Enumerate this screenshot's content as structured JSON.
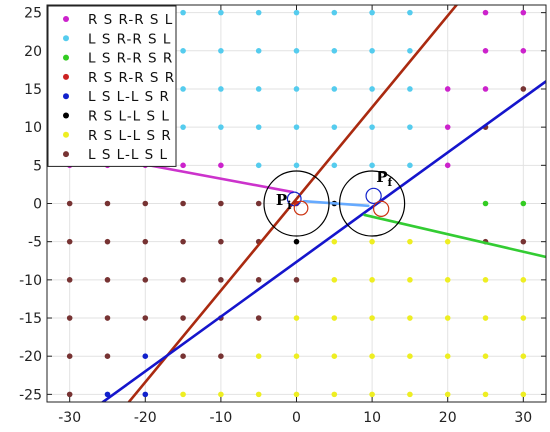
{
  "chart_data": {
    "type": "scatter",
    "title": "",
    "xlabel": "",
    "ylabel": "",
    "xlim": [
      -33,
      33
    ],
    "ylim": [
      -26,
      26
    ],
    "xticks": [
      -30,
      -20,
      -10,
      0,
      10,
      20,
      30
    ],
    "yticks": [
      -25,
      -20,
      -15,
      -10,
      -5,
      0,
      5,
      10,
      15,
      20,
      25
    ],
    "grid": true,
    "legend_position": "top-left",
    "series": [
      {
        "name": "R S R-R S L",
        "color": "#cc22cc",
        "points": [
          [
            -30,
            25
          ],
          [
            -25,
            25
          ],
          [
            -20,
            25
          ],
          [
            -30,
            20
          ],
          [
            -25,
            20
          ],
          [
            -20,
            20
          ],
          [
            -30,
            15
          ],
          [
            -25,
            15
          ],
          [
            -20,
            15
          ],
          [
            -30,
            10
          ],
          [
            -25,
            10
          ],
          [
            -20,
            10
          ],
          [
            -30,
            5
          ],
          [
            -25,
            5
          ],
          [
            -20,
            5
          ],
          [
            -15,
            5
          ],
          [
            -10,
            5
          ],
          [
            25,
            25
          ],
          [
            30,
            25
          ],
          [
            25,
            20
          ],
          [
            30,
            20
          ],
          [
            25,
            15
          ],
          [
            20,
            15
          ],
          [
            20,
            10
          ],
          [
            20,
            5
          ]
        ]
      },
      {
        "name": "L S R-R S L",
        "color": "#55ccee",
        "points": [
          [
            -15,
            25
          ],
          [
            -10,
            25
          ],
          [
            -5,
            25
          ],
          [
            0,
            25
          ],
          [
            5,
            25
          ],
          [
            10,
            25
          ],
          [
            15,
            25
          ],
          [
            -15,
            20
          ],
          [
            -10,
            20
          ],
          [
            -5,
            20
          ],
          [
            0,
            20
          ],
          [
            5,
            20
          ],
          [
            10,
            20
          ],
          [
            15,
            20
          ],
          [
            -15,
            15
          ],
          [
            -10,
            15
          ],
          [
            -5,
            15
          ],
          [
            0,
            15
          ],
          [
            5,
            15
          ],
          [
            10,
            15
          ],
          [
            15,
            15
          ],
          [
            -15,
            10
          ],
          [
            -10,
            10
          ],
          [
            -5,
            10
          ],
          [
            0,
            10
          ],
          [
            5,
            10
          ],
          [
            10,
            10
          ],
          [
            15,
            10
          ],
          [
            -5,
            5
          ],
          [
            0,
            5
          ],
          [
            5,
            5
          ],
          [
            10,
            5
          ],
          [
            15,
            5
          ]
        ]
      },
      {
        "name": "L S R-R S R",
        "color": "#33cc22",
        "points": [
          [
            25,
            0
          ],
          [
            30,
            0
          ]
        ]
      },
      {
        "name": "R S R-R S R",
        "color": "#cc2222",
        "points": [
          [
            0,
            0
          ]
        ]
      },
      {
        "name": "L S L-L S R",
        "color": "#1122cc",
        "points": [
          [
            -20,
            -20
          ],
          [
            -25,
            -25
          ],
          [
            -20,
            -25
          ]
        ]
      },
      {
        "name": "R S L-L S L",
        "color": "#000000",
        "points": [
          [
            5,
            0
          ],
          [
            0,
            -5
          ]
        ]
      },
      {
        "name": "R S L-L S R",
        "color": "#eeee22",
        "points": [
          [
            5,
            -10
          ],
          [
            10,
            -10
          ],
          [
            15,
            -10
          ],
          [
            20,
            -10
          ],
          [
            25,
            -10
          ],
          [
            30,
            -10
          ],
          [
            0,
            -15
          ],
          [
            5,
            -15
          ],
          [
            10,
            -15
          ],
          [
            15,
            -15
          ],
          [
            20,
            -15
          ],
          [
            25,
            -15
          ],
          [
            30,
            -15
          ],
          [
            -5,
            -20
          ],
          [
            0,
            -20
          ],
          [
            5,
            -20
          ],
          [
            10,
            -20
          ],
          [
            15,
            -20
          ],
          [
            20,
            -20
          ],
          [
            25,
            -20
          ],
          [
            30,
            -20
          ],
          [
            -15,
            -25
          ],
          [
            -10,
            -25
          ],
          [
            -5,
            -25
          ],
          [
            0,
            -25
          ],
          [
            5,
            -25
          ],
          [
            10,
            -25
          ],
          [
            15,
            -25
          ],
          [
            20,
            -25
          ],
          [
            25,
            -25
          ],
          [
            30,
            -25
          ],
          [
            5,
            -5
          ],
          [
            10,
            -5
          ],
          [
            15,
            -5
          ],
          [
            20,
            -5
          ]
        ]
      },
      {
        "name": "L S L-L S L",
        "color": "#773333",
        "points": [
          [
            -30,
            0
          ],
          [
            -25,
            0
          ],
          [
            -20,
            0
          ],
          [
            -15,
            0
          ],
          [
            -10,
            0
          ],
          [
            -5,
            0
          ],
          [
            -30,
            -5
          ],
          [
            -25,
            -5
          ],
          [
            -20,
            -5
          ],
          [
            -15,
            -5
          ],
          [
            -10,
            -5
          ],
          [
            -5,
            -5
          ],
          [
            -30,
            -10
          ],
          [
            -25,
            -10
          ],
          [
            -20,
            -10
          ],
          [
            -15,
            -10
          ],
          [
            -10,
            -10
          ],
          [
            -5,
            -10
          ],
          [
            0,
            -10
          ],
          [
            -30,
            -15
          ],
          [
            -25,
            -15
          ],
          [
            -20,
            -15
          ],
          [
            -15,
            -15
          ],
          [
            -10,
            -15
          ],
          [
            -5,
            -15
          ],
          [
            -30,
            -20
          ],
          [
            -25,
            -20
          ],
          [
            -15,
            -20
          ],
          [
            -10,
            -20
          ],
          [
            -30,
            -25
          ],
          [
            25,
            -5
          ],
          [
            30,
            -5
          ],
          [
            25,
            10
          ],
          [
            30,
            15
          ]
        ]
      }
    ],
    "lines": [
      {
        "color": "#aa2a10",
        "from": [
          -23,
          -27
        ],
        "to": [
          22,
          27
        ]
      },
      {
        "color": "#1515cc",
        "from": [
          -27,
          -27
        ],
        "to": [
          33,
          16
        ]
      },
      {
        "color": "#cc33cc",
        "from": [
          -33,
          7.5
        ],
        "to": [
          -0.5,
          1.5
        ]
      },
      {
        "color": "#33cc33",
        "from": [
          9,
          -1.5
        ],
        "to": [
          33,
          -7
        ]
      },
      {
        "color": "#66aaff",
        "from": [
          1,
          0.3
        ],
        "to": [
          9.5,
          -0.3
        ]
      }
    ],
    "circles": [
      {
        "color": "#000000",
        "center": [
          0,
          0
        ],
        "r": 4.3
      },
      {
        "color": "#000000",
        "center": [
          10,
          0
        ],
        "r": 4.3
      },
      {
        "color": "#1122cc",
        "center": [
          -0.3,
          0.6
        ],
        "r": 0.9
      },
      {
        "color": "#cc3311",
        "center": [
          0.6,
          -0.6
        ],
        "r": 0.9
      },
      {
        "color": "#1122cc",
        "center": [
          10.2,
          1.0
        ],
        "r": 1.0
      },
      {
        "color": "#cc3311",
        "center": [
          11.2,
          -0.7
        ],
        "r": 1.0
      }
    ],
    "annotations": [
      {
        "text": "P",
        "sub": "i",
        "at": [
          -1.7,
          -0.2
        ]
      },
      {
        "text": "P",
        "sub": "f",
        "at": [
          11.6,
          2.8
        ]
      }
    ]
  }
}
